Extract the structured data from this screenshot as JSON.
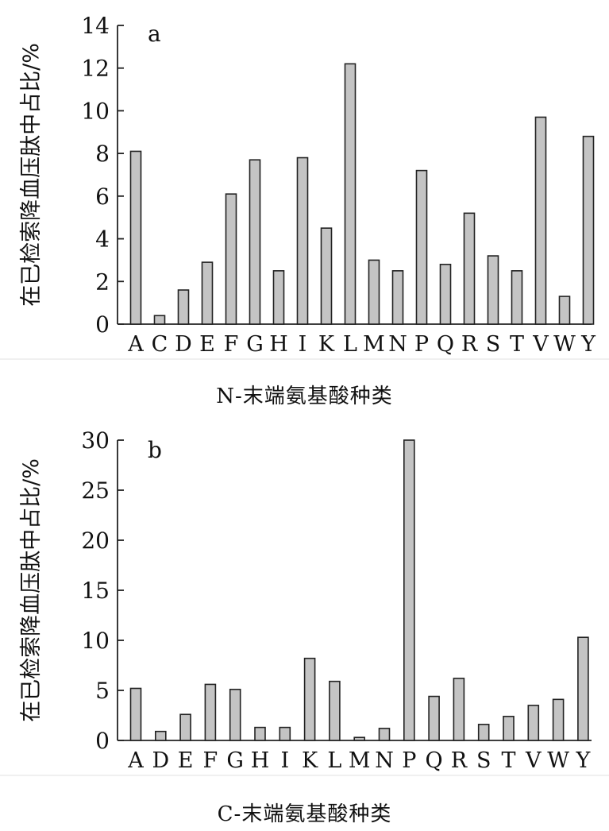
{
  "chart_data": [
    {
      "type": "bar",
      "panel_label": "a",
      "ylabel": "在已检索降血压肽中占比/%",
      "xlabel": "N-末端氨基酸种类",
      "ylim": [
        0,
        14
      ],
      "yticks": [
        "0",
        "2",
        "4",
        "6",
        "8",
        "10",
        "12",
        "14"
      ],
      "categories": [
        "A",
        "C",
        "D",
        "E",
        "F",
        "G",
        "H",
        "I",
        "K",
        "L",
        "M",
        "N",
        "P",
        "Q",
        "R",
        "S",
        "T",
        "V",
        "W",
        "Y"
      ],
      "values": [
        8.1,
        0.4,
        1.6,
        2.9,
        6.1,
        7.7,
        2.5,
        7.8,
        4.5,
        12.2,
        3.0,
        2.5,
        7.2,
        2.8,
        5.2,
        3.2,
        2.5,
        9.7,
        1.3,
        8.8
      ],
      "bar_color": "#c4c4c4"
    },
    {
      "type": "bar",
      "panel_label": "b",
      "ylabel": "在已检索降血压肽中占比/%",
      "xlabel": "C-末端氨基酸种类",
      "ylim": [
        0,
        30
      ],
      "yticks": [
        "0",
        "5",
        "10",
        "15",
        "20",
        "25",
        "30"
      ],
      "categories": [
        "A",
        "D",
        "E",
        "F",
        "G",
        "H",
        "I",
        "K",
        "L",
        "M",
        "N",
        "P",
        "Q",
        "R",
        "S",
        "T",
        "V",
        "W",
        "Y"
      ],
      "values": [
        5.2,
        0.9,
        2.6,
        5.6,
        5.1,
        1.3,
        1.3,
        8.2,
        5.9,
        0.3,
        1.2,
        30.0,
        4.4,
        6.2,
        1.6,
        2.4,
        3.5,
        4.1,
        10.3
      ],
      "bar_color": "#c4c4c4"
    }
  ]
}
